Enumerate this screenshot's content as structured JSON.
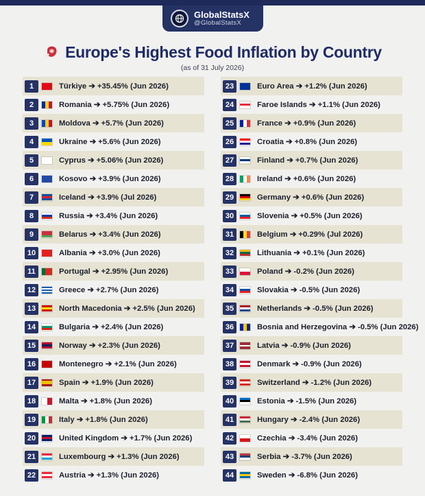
{
  "brand": {
    "name": "GlobalStatsX",
    "handle": "@GlobalStatsX"
  },
  "title": "Europe's Highest Food Inflation by Country",
  "subtitle": "(as of 31 July 2026)",
  "colors": {
    "navy": "#253267",
    "band": "#e6e3d3",
    "title": "#1f2b66"
  },
  "chart_data": {
    "type": "table",
    "columns": [
      "rank",
      "country",
      "food_inflation_percent",
      "period"
    ],
    "rows": [
      {
        "rank": 1,
        "country": "Türkiye",
        "value": "+35.45%",
        "period": "(Jun 2026)",
        "flag": {
          "type": "h",
          "colors": [
            "#e30a17"
          ]
        }
      },
      {
        "rank": 2,
        "country": "Romania",
        "value": "+5.75%",
        "period": "(Jun 2026)",
        "flag": {
          "type": "v",
          "colors": [
            "#002b7f",
            "#fcd116",
            "#ce1126"
          ]
        }
      },
      {
        "rank": 3,
        "country": "Moldova",
        "value": "+5.7%",
        "period": "(Jun 2026)",
        "flag": {
          "type": "v",
          "colors": [
            "#0046ae",
            "#ffd200",
            "#cc092f"
          ]
        }
      },
      {
        "rank": 4,
        "country": "Ukraine",
        "value": "+5.6%",
        "period": "(Jun 2026)",
        "flag": {
          "type": "h",
          "colors": [
            "#0057b7",
            "#ffd700"
          ]
        }
      },
      {
        "rank": 5,
        "country": "Cyprus",
        "value": "+5.06%",
        "period": "(Jun 2026)",
        "flag": {
          "type": "h",
          "colors": [
            "#ffffff"
          ]
        }
      },
      {
        "rank": 6,
        "country": "Kosovo",
        "value": "+3.9%",
        "period": "(Jun 2026)",
        "flag": {
          "type": "h",
          "colors": [
            "#244aa5"
          ]
        }
      },
      {
        "rank": 7,
        "country": "Iceland",
        "value": "+3.9%",
        "period": "(Jul 2026)",
        "flag": {
          "type": "h",
          "colors": [
            "#02529c",
            "#dc1e35",
            "#02529c"
          ]
        }
      },
      {
        "rank": 8,
        "country": "Russia",
        "value": "+3.4%",
        "period": "(Jun 2026)",
        "flag": {
          "type": "h",
          "colors": [
            "#ffffff",
            "#0039a6",
            "#d52b1e"
          ]
        }
      },
      {
        "rank": 9,
        "country": "Belarus",
        "value": "+3.4%",
        "period": "(Jun 2026)",
        "flag": {
          "type": "h",
          "colors": [
            "#c8313e",
            "#c8313e",
            "#4aa657"
          ]
        }
      },
      {
        "rank": 10,
        "country": "Albania",
        "value": "+3.0%",
        "period": "(Jun 2026)",
        "flag": {
          "type": "h",
          "colors": [
            "#e41e20"
          ]
        }
      },
      {
        "rank": 11,
        "country": "Portugal",
        "value": "+2.95%",
        "period": "(Jun 2026)",
        "flag": {
          "type": "v",
          "colors": [
            "#046a38",
            "#da291c",
            "#da291c"
          ]
        }
      },
      {
        "rank": 12,
        "country": "Greece",
        "value": "+2.7%",
        "period": "(Jun 2026)",
        "flag": {
          "type": "h",
          "colors": [
            "#0d5eaf",
            "#ffffff",
            "#0d5eaf",
            "#ffffff",
            "#0d5eaf"
          ]
        }
      },
      {
        "rank": 13,
        "country": "North Macedonia",
        "value": "+2.5%",
        "period": "(Jun 2026)",
        "flag": {
          "type": "h",
          "colors": [
            "#d20000",
            "#ffe600",
            "#d20000"
          ]
        }
      },
      {
        "rank": 14,
        "country": "Bulgaria",
        "value": "+2.4%",
        "period": "(Jun 2026)",
        "flag": {
          "type": "h",
          "colors": [
            "#ffffff",
            "#00966e",
            "#d62612"
          ]
        }
      },
      {
        "rank": 15,
        "country": "Norway",
        "value": "+2.3%",
        "period": "(Jun 2026)",
        "flag": {
          "type": "h",
          "colors": [
            "#ba0c2f",
            "#00205b",
            "#ba0c2f"
          ]
        }
      },
      {
        "rank": 16,
        "country": "Montenegro",
        "value": "+2.1%",
        "period": "(Jun 2026)",
        "flag": {
          "type": "h",
          "colors": [
            "#c40308"
          ]
        }
      },
      {
        "rank": 17,
        "country": "Spain",
        "value": "+1.9%",
        "period": "(Jun 2026)",
        "flag": {
          "type": "h",
          "colors": [
            "#aa151b",
            "#f1bf00",
            "#f1bf00",
            "#aa151b"
          ]
        }
      },
      {
        "rank": 18,
        "country": "Malta",
        "value": "+1.8%",
        "period": "(Jun 2026)",
        "flag": {
          "type": "v",
          "colors": [
            "#ffffff",
            "#cf142b"
          ]
        }
      },
      {
        "rank": 19,
        "country": "Italy",
        "value": "+1.8%",
        "period": "(Jun 2026)",
        "flag": {
          "type": "v",
          "colors": [
            "#009246",
            "#ffffff",
            "#ce2b37"
          ]
        }
      },
      {
        "rank": 20,
        "country": "United Kingdom",
        "value": "+1.7%",
        "period": "(Jun 2026)",
        "flag": {
          "type": "h",
          "colors": [
            "#012169",
            "#c8102e",
            "#012169"
          ]
        }
      },
      {
        "rank": 21,
        "country": "Luxembourg",
        "value": "+1.3%",
        "period": "(Jun 2026)",
        "flag": {
          "type": "h",
          "colors": [
            "#ed2939",
            "#ffffff",
            "#00a1de"
          ]
        }
      },
      {
        "rank": 22,
        "country": "Austria",
        "value": "+1.3%",
        "period": "(Jun 2026)",
        "flag": {
          "type": "h",
          "colors": [
            "#ed2939",
            "#ffffff",
            "#ed2939"
          ]
        }
      },
      {
        "rank": 23,
        "country": "Euro Area",
        "value": "+1.2%",
        "period": "(Jun 2026)",
        "flag": {
          "type": "h",
          "colors": [
            "#003399"
          ]
        }
      },
      {
        "rank": 24,
        "country": "Faroe Islands",
        "value": "+1.1%",
        "period": "(Jun 2026)",
        "flag": {
          "type": "h",
          "colors": [
            "#ffffff",
            "#ed2939",
            "#ffffff"
          ]
        }
      },
      {
        "rank": 25,
        "country": "France",
        "value": "+0.9%",
        "period": "(Jun 2026)",
        "flag": {
          "type": "v",
          "colors": [
            "#002395",
            "#ffffff",
            "#ed2939"
          ]
        }
      },
      {
        "rank": 26,
        "country": "Croatia",
        "value": "+0.8%",
        "period": "(Jun 2026)",
        "flag": {
          "type": "h",
          "colors": [
            "#ff0000",
            "#ffffff",
            "#171796"
          ]
        }
      },
      {
        "rank": 27,
        "country": "Finland",
        "value": "+0.7%",
        "period": "(Jun 2026)",
        "flag": {
          "type": "h",
          "colors": [
            "#ffffff",
            "#003580",
            "#ffffff"
          ]
        }
      },
      {
        "rank": 28,
        "country": "Ireland",
        "value": "+0.6%",
        "period": "(Jun 2026)",
        "flag": {
          "type": "v",
          "colors": [
            "#169b62",
            "#ffffff",
            "#ff883e"
          ]
        }
      },
      {
        "rank": 29,
        "country": "Germany",
        "value": "+0.6%",
        "period": "(Jun 2026)",
        "flag": {
          "type": "h",
          "colors": [
            "#000000",
            "#dd0000",
            "#ffce00"
          ]
        }
      },
      {
        "rank": 30,
        "country": "Slovenia",
        "value": "+0.5%",
        "period": "(Jun 2026)",
        "flag": {
          "type": "h",
          "colors": [
            "#ffffff",
            "#005da4",
            "#ed1c24"
          ]
        }
      },
      {
        "rank": 31,
        "country": "Belgium",
        "value": "+0.29%",
        "period": "(Jul 2026)",
        "flag": {
          "type": "v",
          "colors": [
            "#000000",
            "#fdda24",
            "#ef3340"
          ]
        }
      },
      {
        "rank": 32,
        "country": "Lithuania",
        "value": "+0.1%",
        "period": "(Jun 2026)",
        "flag": {
          "type": "h",
          "colors": [
            "#fdb913",
            "#006a44",
            "#c1272d"
          ]
        }
      },
      {
        "rank": 33,
        "country": "Poland",
        "value": "-0.2%",
        "period": "(Jun 2026)",
        "flag": {
          "type": "h",
          "colors": [
            "#ffffff",
            "#dc143c"
          ]
        }
      },
      {
        "rank": 34,
        "country": "Slovakia",
        "value": "-0.5%",
        "period": "(Jun 2026)",
        "flag": {
          "type": "h",
          "colors": [
            "#ffffff",
            "#0b4ea2",
            "#ee1c25"
          ]
        }
      },
      {
        "rank": 35,
        "country": "Netherlands",
        "value": "-0.5%",
        "period": "(Jun 2026)",
        "flag": {
          "type": "h",
          "colors": [
            "#ae1c28",
            "#ffffff",
            "#21468b"
          ]
        }
      },
      {
        "rank": 36,
        "country": "Bosnia and Herzegovina",
        "value": "-0.5%",
        "period": "(Jun 2026)",
        "flag": {
          "type": "v",
          "colors": [
            "#002395",
            "#fecb00",
            "#002395"
          ]
        }
      },
      {
        "rank": 37,
        "country": "Latvia",
        "value": "-0.9%",
        "period": "(Jun 2026)",
        "flag": {
          "type": "h",
          "colors": [
            "#9e3039",
            "#9e3039",
            "#ffffff",
            "#9e3039",
            "#9e3039"
          ]
        }
      },
      {
        "rank": 38,
        "country": "Denmark",
        "value": "-0.9%",
        "period": "(Jun 2026)",
        "flag": {
          "type": "h",
          "colors": [
            "#c8102e",
            "#ffffff",
            "#c8102e"
          ]
        }
      },
      {
        "rank": 39,
        "country": "Switzerland",
        "value": "-1.2%",
        "period": "(Jun 2026)",
        "flag": {
          "type": "h",
          "colors": [
            "#da291c",
            "#ffffff",
            "#da291c"
          ]
        }
      },
      {
        "rank": 40,
        "country": "Estonia",
        "value": "-1.5%",
        "period": "(Jun 2026)",
        "flag": {
          "type": "h",
          "colors": [
            "#0072ce",
            "#000000",
            "#ffffff"
          ]
        }
      },
      {
        "rank": 41,
        "country": "Hungary",
        "value": "-2.4%",
        "period": "(Jun 2026)",
        "flag": {
          "type": "h",
          "colors": [
            "#ce2939",
            "#ffffff",
            "#477050"
          ]
        }
      },
      {
        "rank": 42,
        "country": "Czechia",
        "value": "-3.4%",
        "period": "(Jun 2026)",
        "flag": {
          "type": "h",
          "colors": [
            "#ffffff",
            "#d7141a"
          ]
        }
      },
      {
        "rank": 43,
        "country": "Serbia",
        "value": "-3.7%",
        "period": "(Jun 2026)",
        "flag": {
          "type": "h",
          "colors": [
            "#c6363c",
            "#0c4076",
            "#ffffff"
          ]
        }
      },
      {
        "rank": 44,
        "country": "Sweden",
        "value": "-6.8%",
        "period": "(Jun 2026)",
        "flag": {
          "type": "h",
          "colors": [
            "#006aa7",
            "#fecc00",
            "#006aa7"
          ]
        }
      }
    ]
  }
}
